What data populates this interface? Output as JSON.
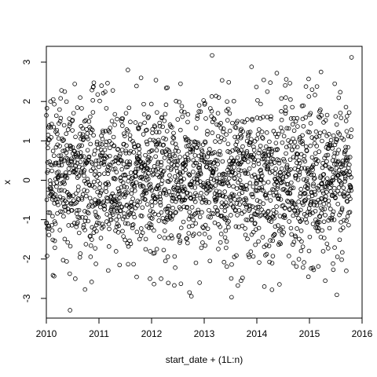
{
  "chart_data": {
    "type": "scatter",
    "title": "",
    "xlabel": "start_date + (1L:n)",
    "ylabel": "x",
    "xlim": [
      2010.0,
      2016.0
    ],
    "ylim": [
      -3.5,
      3.4
    ],
    "x_ticks": [
      2010,
      2011,
      2012,
      2013,
      2014,
      2015,
      2016
    ],
    "x_tick_labels": [
      "2010",
      "2011",
      "2012",
      "2013",
      "2014",
      "2015",
      "2016"
    ],
    "y_ticks": [
      -3,
      -2,
      -1,
      0,
      1,
      2,
      3
    ],
    "y_tick_labels": [
      "-3",
      "-2",
      "-1",
      "0",
      "1",
      "2",
      "3"
    ],
    "grid": false,
    "marker": "open-circle",
    "point_color": "#000000",
    "n_points_approx": 2100,
    "x_range": [
      2010.0,
      2015.8
    ],
    "distribution": "approximately standard normal noise, mean 0, sd 1",
    "points": [
      {
        "x": 2010.45,
        "y": -3.3
      },
      {
        "x": 2011.55,
        "y": 2.8
      },
      {
        "x": 2011.8,
        "y": 2.6
      },
      {
        "x": 2012.72,
        "y": -2.85
      },
      {
        "x": 2013.15,
        "y": 3.17
      },
      {
        "x": 2013.52,
        "y": -2.97
      },
      {
        "x": 2013.9,
        "y": 2.88
      },
      {
        "x": 2014.38,
        "y": 2.72
      },
      {
        "x": 2014.98,
        "y": -2.45
      },
      {
        "x": 2015.22,
        "y": 2.75
      },
      {
        "x": 2015.48,
        "y": 2.45
      },
      {
        "x": 2015.8,
        "y": 3.12
      },
      {
        "x": 2010.55,
        "y": -2.5
      },
      {
        "x": 2011.97,
        "y": -2.5
      },
      {
        "x": 2012.18,
        "y": -2.5
      },
      {
        "x": 2010.08,
        "y": 2.0
      },
      {
        "x": 2010.35,
        "y": 2.25
      },
      {
        "x": 2012.55,
        "y": 2.45
      },
      {
        "x": 2012.3,
        "y": 2.35
      },
      {
        "x": 2014.2,
        "y": 2.25
      },
      {
        "x": 2015.05,
        "y": 2.3
      },
      {
        "x": 2015.7,
        "y": -2.3
      },
      {
        "x": 2015.3,
        "y": -2.55
      },
      {
        "x": 2013.7,
        "y": -2.55
      },
      {
        "x": 2014.55,
        "y": 2.1
      }
    ]
  }
}
